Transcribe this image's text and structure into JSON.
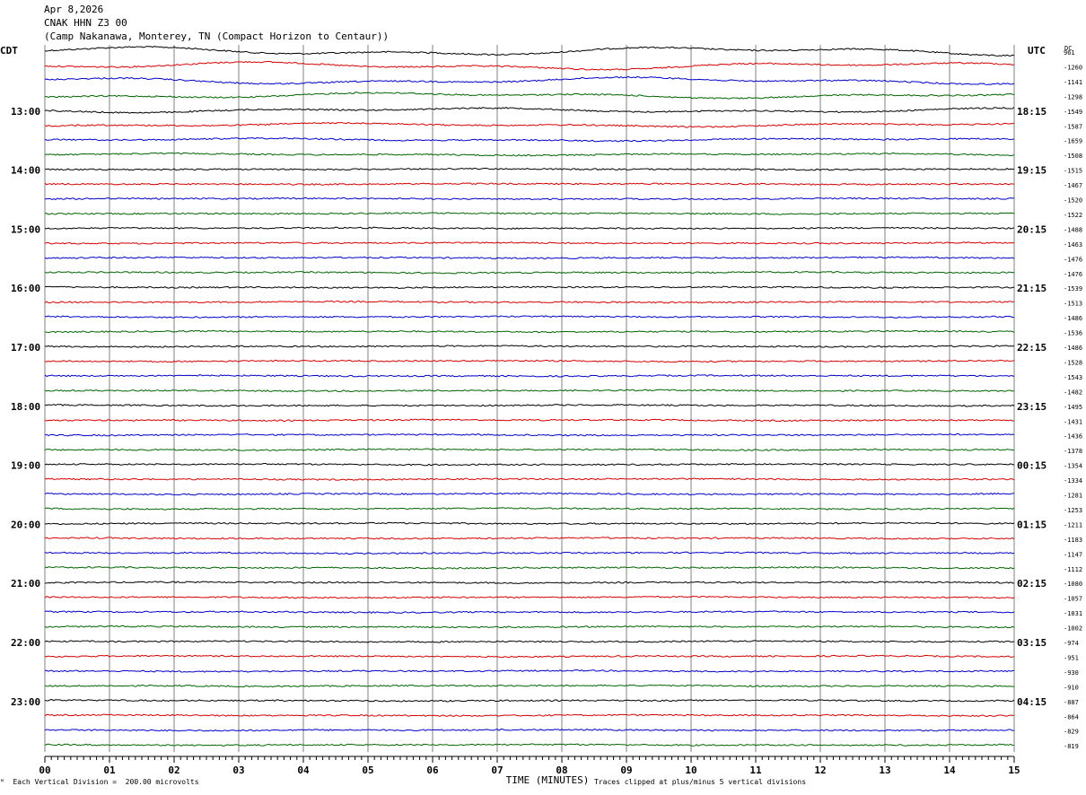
{
  "header": {
    "date": "Apr 8,2026",
    "station": "CNAK HHN Z3 00",
    "location": "(Camp Nakanawa, Monterey, TN (Compact Horizon to Centaur))"
  },
  "left_tz": "CDT",
  "right_tz": "UTC",
  "dc_label": "DC",
  "footer": {
    "scale_note": "Each Vertical Division =  200.00 microvolts",
    "clip_note": "Traces clipped at plus/minus 5 vertical divisions"
  },
  "trace_colors": [
    "#000000",
    "#d40000",
    "#0000c8",
    "#006400"
  ],
  "chart_data": {
    "type": "line",
    "title": "CNAK HHN Z3 00",
    "xlabel": "TIME (MINUTES)",
    "ylabel": "",
    "xlim": [
      0,
      15
    ],
    "x_ticks": [
      "00",
      "01",
      "02",
      "03",
      "04",
      "05",
      "06",
      "07",
      "08",
      "09",
      "10",
      "11",
      "12",
      "13",
      "14",
      "15"
    ],
    "trace_count": 48,
    "row_labels_left": [
      "13:00",
      "14:00",
      "15:00",
      "16:00",
      "17:00",
      "18:00",
      "19:00",
      "20:00",
      "21:00",
      "22:00",
      "23:00"
    ],
    "row_labels_right": [
      "18:15",
      "19:15",
      "20:15",
      "21:15",
      "22:15",
      "23:15",
      "00:15",
      "01:15",
      "02:15",
      "03:15",
      "04:15"
    ],
    "dc_offsets": [
      "961",
      "-1260",
      "-1141",
      "-1298",
      "-1549",
      "-1587",
      "-1659",
      "-1508",
      "-1515",
      "-1467",
      "-1520",
      "-1522",
      "-1488",
      "-1463",
      "-1476",
      "-1476",
      "-1539",
      "-1513",
      "-1486",
      "-1536",
      "-1486",
      "-1528",
      "-1543",
      "-1482",
      "-1495",
      "-1431",
      "-1436",
      "-1378",
      "-1354",
      "-1334",
      "-1281",
      "-1253",
      "-1211",
      "-1183",
      "-1147",
      "-1112",
      "-1080",
      "-1057",
      "-1031",
      "-1002",
      "-974",
      "-951",
      "-930",
      "-910",
      "-887",
      "-864",
      "-829",
      "-819"
    ]
  }
}
